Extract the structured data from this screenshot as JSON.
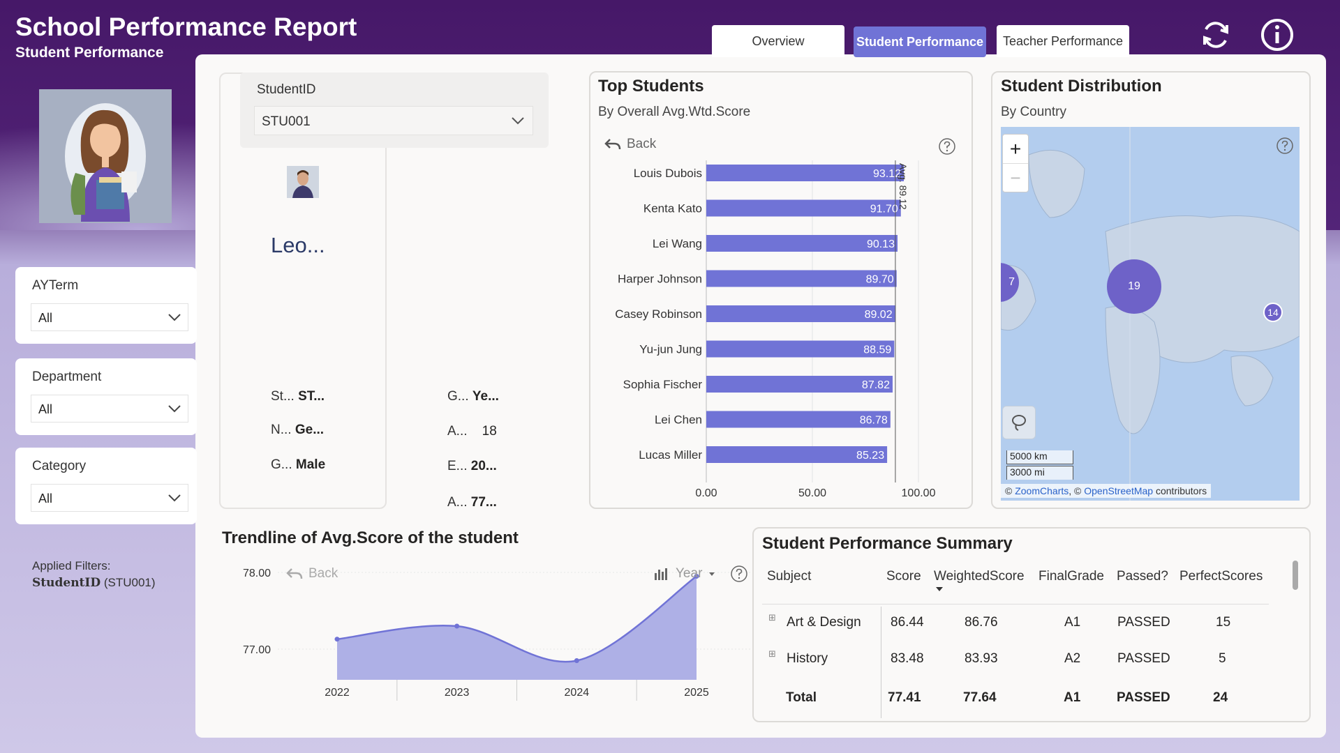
{
  "header": {
    "title": "School Performance Report",
    "subtitle": "Student Performance",
    "tabs": [
      {
        "label": "Overview"
      },
      {
        "label": "Student Performance"
      },
      {
        "label": "Teacher Performance"
      }
    ],
    "icons": [
      "refresh-icon",
      "info-icon"
    ]
  },
  "slicers": {
    "ayterm": {
      "label": "AYTerm",
      "value": "All"
    },
    "department": {
      "label": "Department",
      "value": "All"
    },
    "category": {
      "label": "Category",
      "value": "All"
    },
    "studentid": {
      "label": "StudentID",
      "value": "STU001"
    }
  },
  "applied_filters": {
    "label": "Applied Filters:",
    "field": "StudentID",
    "value": "(STU001)"
  },
  "student_card": {
    "name": "Leo...",
    "fields": [
      {
        "key": "St...",
        "value": "ST..."
      },
      {
        "key": "N...",
        "value": "Ge..."
      },
      {
        "key": "G...",
        "value": "Male"
      },
      {
        "key": "G...",
        "value": "Ye..."
      },
      {
        "key": "A...",
        "value": "18"
      },
      {
        "key": "E...",
        "value": "20..."
      },
      {
        "key": "A...",
        "value": "77..."
      }
    ]
  },
  "top_students": {
    "title": "Top Students",
    "subtitle": "By Overall Avg.Wtd.Score",
    "back_label": "Back",
    "avg_label": "Avg. 89.12",
    "axis_ticks": [
      "0.00",
      "50.00",
      "100.00"
    ]
  },
  "chart_data": [
    {
      "type": "bar",
      "title": "Top Students",
      "subtitle": "By Overall Avg.Wtd.Score",
      "categories": [
        "Louis Dubois",
        "Kenta Kato",
        "Lei Wang",
        "Harper Johnson",
        "Casey Robinson",
        "Yu-jun Jung",
        "Sophia Fischer",
        "Lei Chen",
        "Lucas Miller"
      ],
      "values": [
        93.12,
        91.7,
        90.13,
        89.7,
        89.02,
        88.59,
        87.82,
        86.78,
        85.23
      ],
      "labels": [
        "93.12",
        "91.70",
        "90.13",
        "89.70",
        "89.02",
        "88.59",
        "87.82",
        "86.78",
        "85.23"
      ],
      "xlim": [
        0,
        100
      ],
      "reference_line": {
        "label": "Avg. 89.12",
        "value": 89.12
      },
      "orientation": "horizontal"
    },
    {
      "type": "area",
      "title": "Trendline of Avg.Score of the student",
      "x": [
        "2022",
        "2023",
        "2024",
        "2025"
      ],
      "values": [
        77.13,
        77.3,
        76.85,
        77.95
      ],
      "y_ticks": [
        "78.00",
        "77.00"
      ],
      "ylim": [
        76.6,
        78.1
      ]
    }
  ],
  "distribution": {
    "title": "Student Distribution",
    "subtitle": "By Country",
    "clusters": [
      {
        "count": "19"
      },
      {
        "count": "14"
      },
      {
        "count": "7"
      }
    ],
    "scale_km": "5000 km",
    "scale_mi": "3000 mi",
    "attribution_prefix": "©",
    "attribution_zoom": "ZoomCharts",
    "attribution_sep": ", ©",
    "attribution_osm": "OpenStreetMap",
    "attribution_suffix": "contributors"
  },
  "trend": {
    "title": "Trendline of Avg.Score of the student",
    "back_label": "Back",
    "year_label": "Year"
  },
  "summary": {
    "title": "Student Performance Summary",
    "columns": [
      "Subject",
      "Score",
      "WeightedScore",
      "FinalGrade",
      "Passed?",
      "PerfectScores"
    ],
    "rows": [
      {
        "subject": "Art & Design",
        "score": "86.44",
        "weighted": "86.76",
        "grade": "A1",
        "passed": "PASSED",
        "perfect": "15"
      },
      {
        "subject": "History",
        "score": "83.48",
        "weighted": "83.93",
        "grade": "A2",
        "passed": "PASSED",
        "perfect": "5"
      }
    ],
    "total": {
      "subject": "Total",
      "score": "77.41",
      "weighted": "77.64",
      "grade": "A1",
      "passed": "PASSED",
      "perfect": "24"
    }
  },
  "colors": {
    "header_bg": "#4a1a6e",
    "accent": "#7073d6",
    "map_water": "#b3cdee",
    "cluster": "#6e62c8"
  }
}
